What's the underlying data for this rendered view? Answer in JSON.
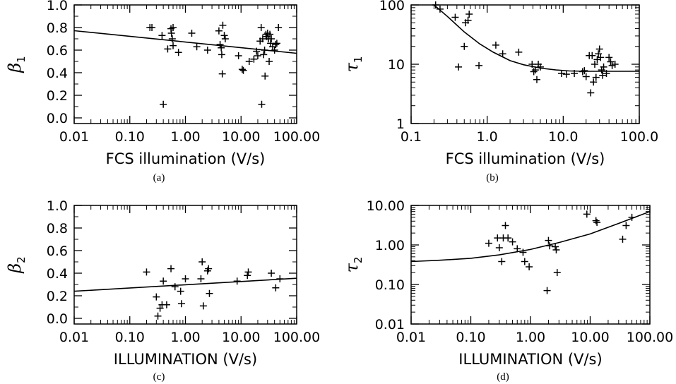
{
  "chart_data": [
    {
      "type": "scatter",
      "caption": "(a)",
      "xlabel": "FCS illumination (V/s)",
      "ylabel_symbol": "β",
      "ylabel_sub": "1",
      "xscale": "log",
      "yscale": "linear",
      "xlim": [
        0.01,
        100
      ],
      "ylim": [
        -0.05,
        1.0
      ],
      "xticks": [
        0.01,
        0.1,
        1,
        10,
        100
      ],
      "xtick_labels": [
        "0.01",
        "0.10",
        "1.00",
        "10.00",
        "100.00"
      ],
      "yticks": [
        0.0,
        0.2,
        0.4,
        0.6,
        0.8,
        1.0
      ],
      "ytick_labels": [
        "0.0",
        "0.2",
        "0.4",
        "0.6",
        "0.8",
        "1.0"
      ],
      "points": [
        [
          0.23,
          0.8
        ],
        [
          0.25,
          0.8
        ],
        [
          0.38,
          0.73
        ],
        [
          0.4,
          0.12
        ],
        [
          0.48,
          0.61
        ],
        [
          0.55,
          0.79
        ],
        [
          0.56,
          0.75
        ],
        [
          0.58,
          0.7
        ],
        [
          0.6,
          0.8
        ],
        [
          0.6,
          0.64
        ],
        [
          0.75,
          0.58
        ],
        [
          1.3,
          0.75
        ],
        [
          1.6,
          0.63
        ],
        [
          2.5,
          0.6
        ],
        [
          4.0,
          0.77
        ],
        [
          4.2,
          0.65
        ],
        [
          4.4,
          0.62
        ],
        [
          4.5,
          0.56
        ],
        [
          4.6,
          0.39
        ],
        [
          4.7,
          0.82
        ],
        [
          5.0,
          0.73
        ],
        [
          5.2,
          0.7
        ],
        [
          9.0,
          0.55
        ],
        [
          10.5,
          0.43
        ],
        [
          11.0,
          0.42
        ],
        [
          14.0,
          0.5
        ],
        [
          17.0,
          0.52
        ],
        [
          19.0,
          0.59
        ],
        [
          20.0,
          0.55
        ],
        [
          22.0,
          0.68
        ],
        [
          23.0,
          0.8
        ],
        [
          23.5,
          0.12
        ],
        [
          24.5,
          0.7
        ],
        [
          25.5,
          0.56
        ],
        [
          26.5,
          0.6
        ],
        [
          27.0,
          0.37
        ],
        [
          28.0,
          0.74
        ],
        [
          29.0,
          0.72
        ],
        [
          30.0,
          0.75
        ],
        [
          31.0,
          0.7
        ],
        [
          32.0,
          0.5
        ],
        [
          33.0,
          0.74
        ],
        [
          34.0,
          0.66
        ],
        [
          35.0,
          0.7
        ],
        [
          37.0,
          0.63
        ],
        [
          40.0,
          0.6
        ],
        [
          42.0,
          0.65
        ],
        [
          44.0,
          0.66
        ],
        [
          47.0,
          0.8
        ]
      ],
      "fit": {
        "x": [
          0.01,
          100
        ],
        "y": [
          0.772,
          0.572
        ]
      }
    },
    {
      "type": "scatter",
      "caption": "(b)",
      "xlabel": "FCS illumination (V/s)",
      "ylabel_symbol": "τ",
      "ylabel_sub": "1",
      "xscale": "log",
      "yscale": "log",
      "xlim": [
        0.1,
        100
      ],
      "ylim": [
        1,
        100
      ],
      "xticks": [
        0.1,
        1,
        10,
        100
      ],
      "xtick_labels": [
        "0.1",
        "1.0",
        "10.0",
        "100.0"
      ],
      "yticks": [
        1,
        10,
        100
      ],
      "ytick_labels": [
        "1",
        "10",
        "100"
      ],
      "points": [
        [
          0.21,
          100
        ],
        [
          0.24,
          85
        ],
        [
          0.38,
          62
        ],
        [
          0.42,
          9
        ],
        [
          0.5,
          20
        ],
        [
          0.52,
          50
        ],
        [
          0.56,
          55
        ],
        [
          0.58,
          70
        ],
        [
          0.78,
          9.5
        ],
        [
          1.3,
          21
        ],
        [
          1.6,
          15
        ],
        [
          2.6,
          16
        ],
        [
          3.9,
          10
        ],
        [
          4.1,
          7.5
        ],
        [
          4.3,
          8
        ],
        [
          4.5,
          5.5
        ],
        [
          4.7,
          10
        ],
        [
          5.0,
          9
        ],
        [
          9.5,
          7
        ],
        [
          11.0,
          6.8
        ],
        [
          14.0,
          7
        ],
        [
          18.0,
          7.5
        ],
        [
          19.0,
          7.8
        ],
        [
          20.0,
          6.2
        ],
        [
          22.0,
          14
        ],
        [
          23.0,
          3.3
        ],
        [
          24.0,
          14
        ],
        [
          25.0,
          5
        ],
        [
          26.0,
          10
        ],
        [
          27.0,
          6
        ],
        [
          28.0,
          12
        ],
        [
          29.0,
          15
        ],
        [
          30.0,
          18
        ],
        [
          31.0,
          13
        ],
        [
          32.0,
          8
        ],
        [
          33.0,
          6.5
        ],
        [
          34.0,
          9
        ],
        [
          37.0,
          7
        ],
        [
          40.0,
          13
        ],
        [
          42.0,
          11
        ],
        [
          44.0,
          9.5
        ],
        [
          48.0,
          10
        ]
      ],
      "fit": {
        "x": [
          0.2,
          0.3,
          0.5,
          0.8,
          1.2,
          2,
          3,
          5,
          8,
          12,
          20,
          30,
          50,
          100
        ],
        "y": [
          100,
          64,
          35,
          22,
          16,
          11.5,
          9.8,
          8.6,
          8.0,
          7.7,
          7.6,
          7.6,
          7.6,
          7.6
        ]
      }
    },
    {
      "type": "scatter",
      "caption": "(c)",
      "xlabel": "ILLUMINATION (V/s)",
      "ylabel_symbol": "β",
      "ylabel_sub": "2",
      "xscale": "log",
      "yscale": "linear",
      "xlim": [
        0.01,
        100
      ],
      "ylim": [
        -0.05,
        1.0
      ],
      "xticks": [
        0.01,
        0.1,
        1,
        10,
        100
      ],
      "xtick_labels": [
        "0.01",
        "0.10",
        "1.00",
        "10.00",
        "100.00"
      ],
      "yticks": [
        0.0,
        0.2,
        0.4,
        0.6,
        0.8,
        1.0
      ],
      "ytick_labels": [
        "0.0",
        "0.2",
        "0.4",
        "0.6",
        "0.8",
        "1.0"
      ],
      "points": [
        [
          0.2,
          0.41
        ],
        [
          0.3,
          0.19
        ],
        [
          0.32,
          0.02
        ],
        [
          0.35,
          0.09
        ],
        [
          0.38,
          0.12
        ],
        [
          0.4,
          0.33
        ],
        [
          0.46,
          0.12
        ],
        [
          0.55,
          0.44
        ],
        [
          0.65,
          0.28
        ],
        [
          0.82,
          0.24
        ],
        [
          0.85,
          0.13
        ],
        [
          1.0,
          0.35
        ],
        [
          1.9,
          0.35
        ],
        [
          2.0,
          0.5
        ],
        [
          2.1,
          0.11
        ],
        [
          2.5,
          0.42
        ],
        [
          2.6,
          0.44
        ],
        [
          2.7,
          0.22
        ],
        [
          8.5,
          0.33
        ],
        [
          13.0,
          0.38
        ],
        [
          13.5,
          0.41
        ],
        [
          35.0,
          0.4
        ],
        [
          42.0,
          0.27
        ],
        [
          50.0,
          0.35
        ]
      ],
      "fit": {
        "x": [
          0.01,
          100
        ],
        "y": [
          0.24,
          0.355
        ]
      }
    },
    {
      "type": "scatter",
      "caption": "(d)",
      "xlabel": "ILLUMINATION (V/s)",
      "ylabel_symbol": "τ",
      "ylabel_sub": "2",
      "xscale": "log",
      "yscale": "log",
      "xlim": [
        0.01,
        100
      ],
      "ylim": [
        0.01,
        10
      ],
      "xticks": [
        0.01,
        0.1,
        1,
        10,
        100
      ],
      "xtick_labels": [
        "0.01",
        "0.10",
        "1.00",
        "10.00",
        "100.00"
      ],
      "yticks": [
        0.01,
        0.1,
        1,
        10
      ],
      "ytick_labels": [
        "0.01",
        "0.10",
        "1.00",
        "10.00"
      ],
      "points": [
        [
          0.2,
          1.1
        ],
        [
          0.28,
          1.5
        ],
        [
          0.3,
          0.85
        ],
        [
          0.33,
          0.38
        ],
        [
          0.35,
          1.5
        ],
        [
          0.38,
          3.1
        ],
        [
          0.42,
          1.5
        ],
        [
          0.5,
          1.2
        ],
        [
          0.6,
          0.8
        ],
        [
          0.75,
          0.65
        ],
        [
          0.8,
          0.38
        ],
        [
          0.95,
          0.28
        ],
        [
          1.9,
          0.07
        ],
        [
          2.0,
          1.3
        ],
        [
          2.1,
          0.95
        ],
        [
          2.6,
          0.9
        ],
        [
          2.7,
          0.75
        ],
        [
          2.8,
          0.2
        ],
        [
          8.8,
          6.0
        ],
        [
          12.5,
          4.1
        ],
        [
          13.0,
          3.7
        ],
        [
          35.0,
          1.4
        ],
        [
          40.0,
          3.1
        ],
        [
          50.0,
          5.0
        ]
      ],
      "fit": {
        "x": [
          0.01,
          0.03,
          0.1,
          0.3,
          1,
          3,
          10,
          30,
          100
        ],
        "y": [
          0.38,
          0.41,
          0.46,
          0.56,
          0.77,
          1.15,
          1.9,
          3.5,
          7.0
        ]
      }
    }
  ]
}
